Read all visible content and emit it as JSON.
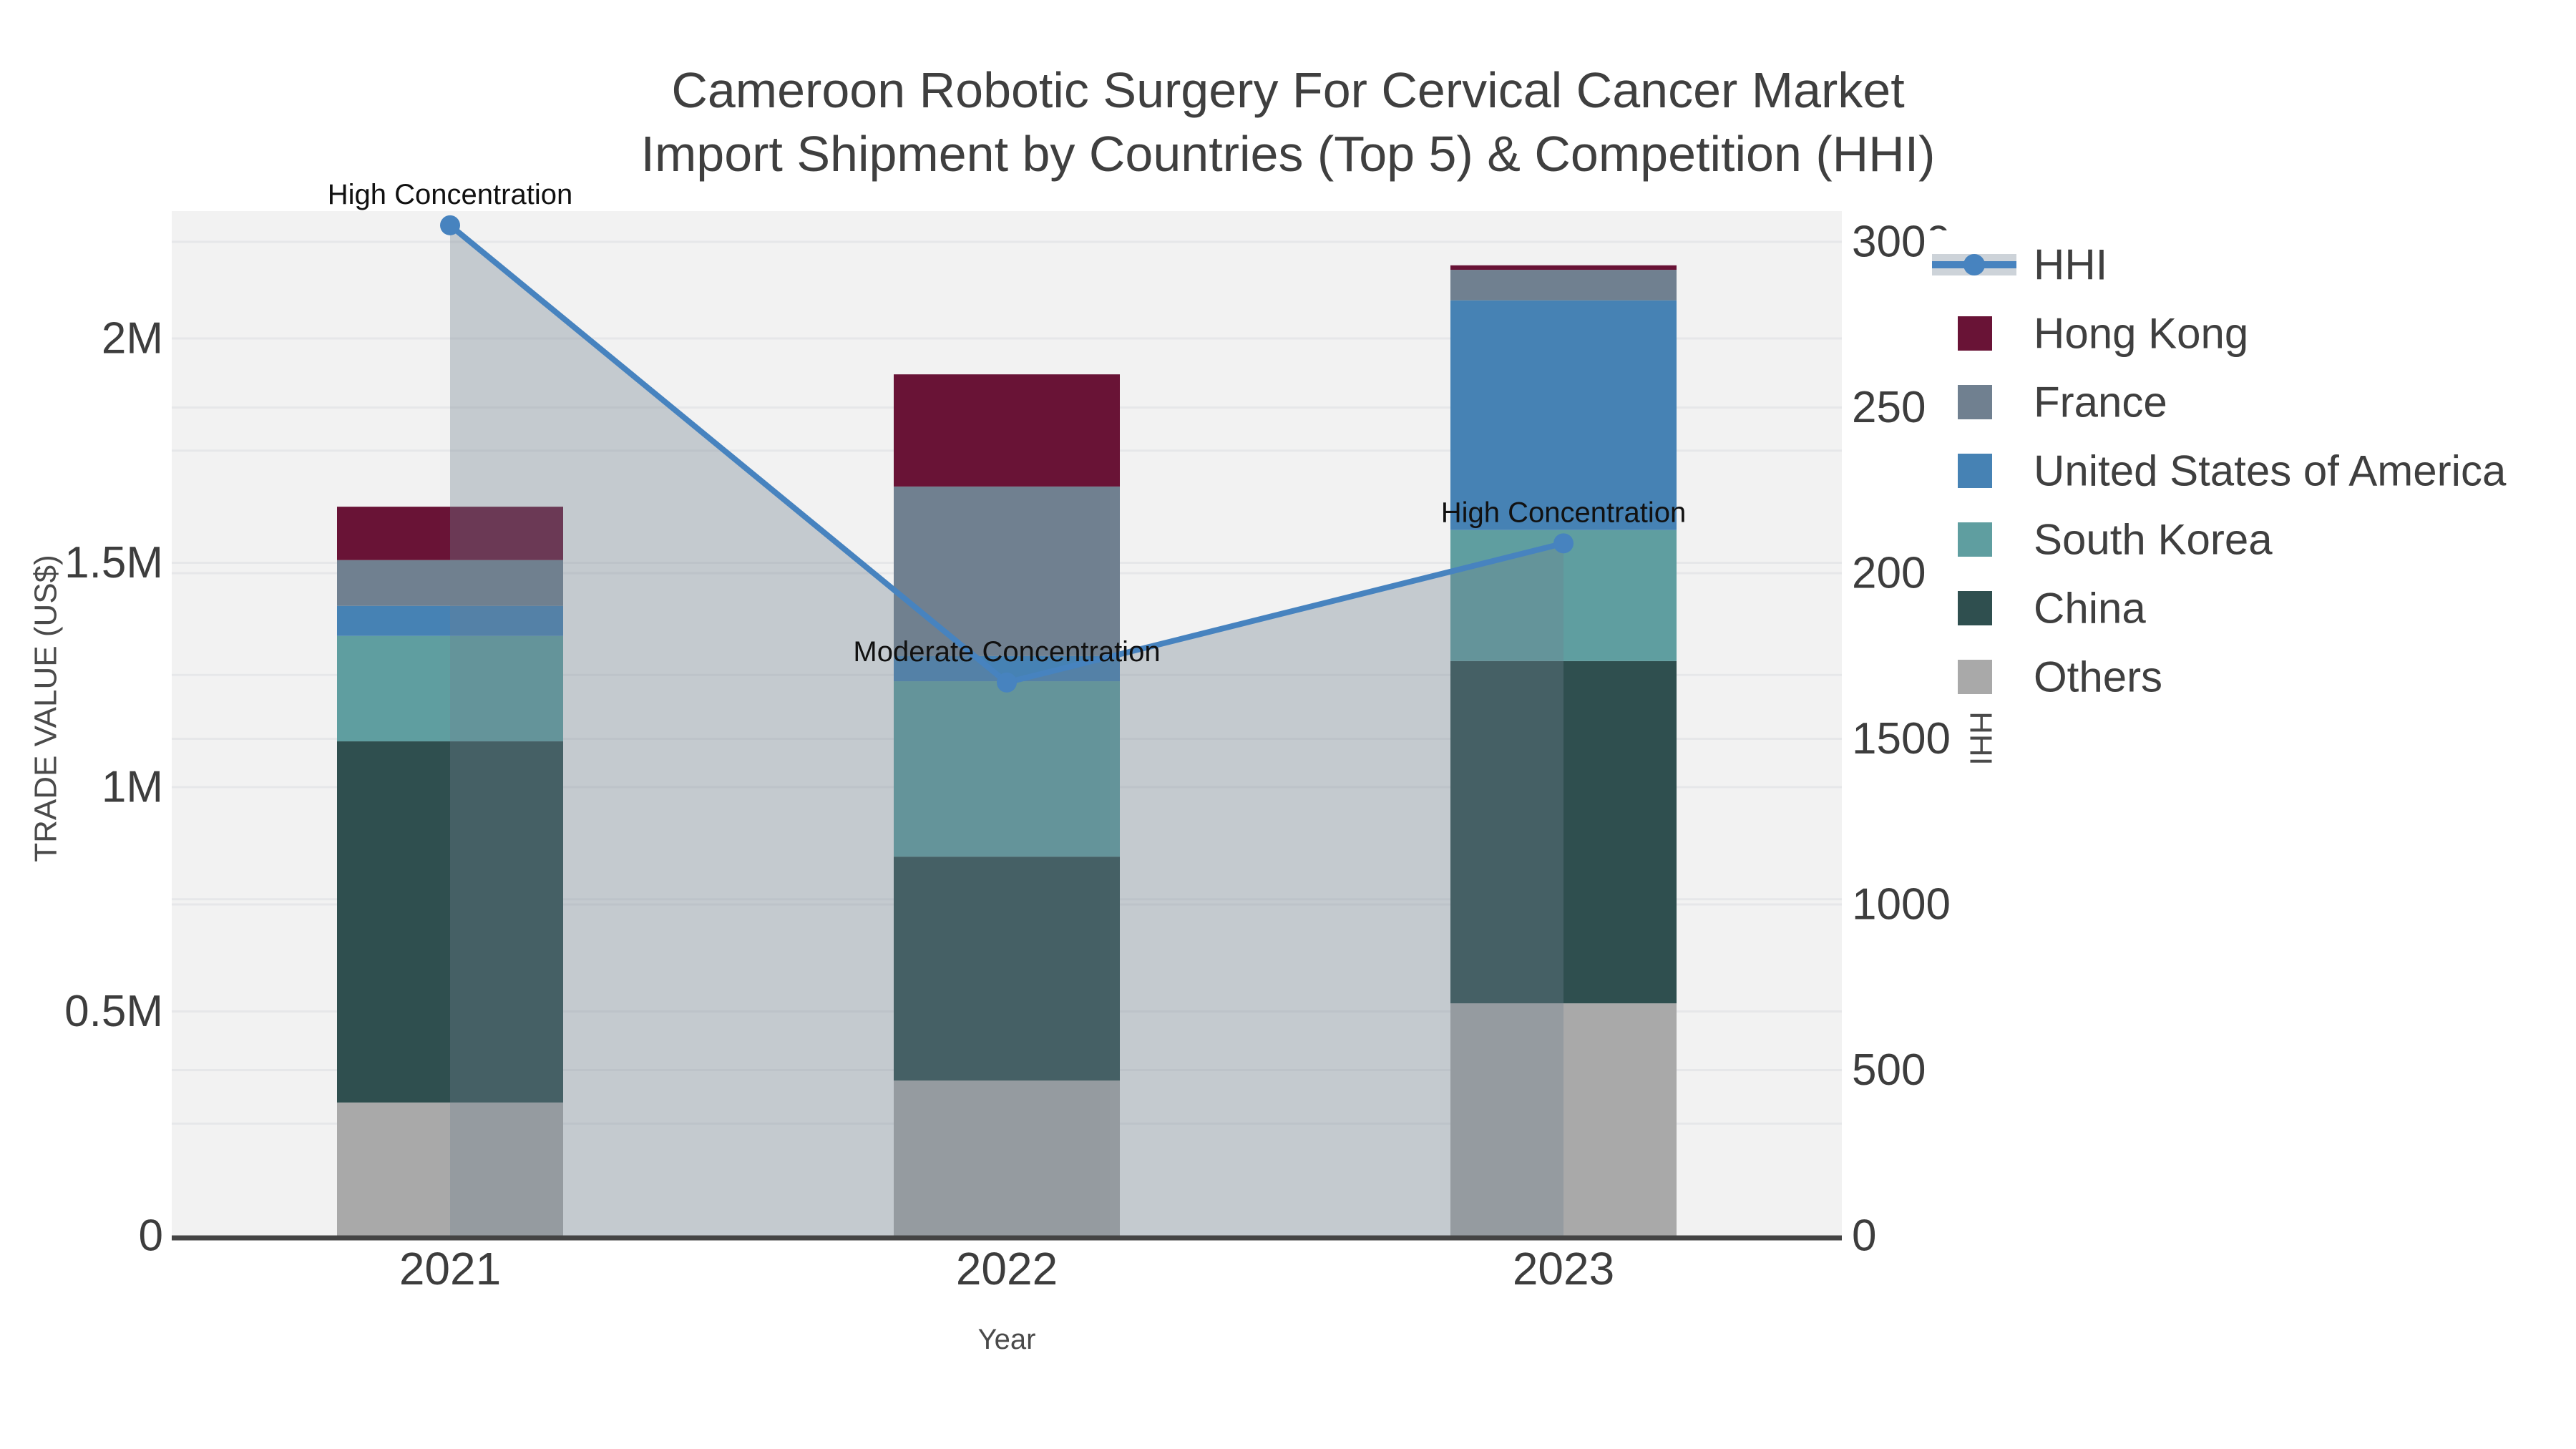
{
  "title": {
    "line1": "Cameroon Robotic Surgery For Cervical Cancer Market",
    "line2": "Import Shipment by Countries (Top 5) & Competition (HHI)"
  },
  "chart_data": {
    "type": "stacked-bar + line (dual y-axis)",
    "categories": [
      "2021",
      "2022",
      "2023"
    ],
    "value_unit": "US$ (left axis, M = millions)",
    "series": [
      {
        "name": "Others",
        "color": "#a9a9a9",
        "values": [
          0.297,
          0.346,
          0.518
        ]
      },
      {
        "name": "China",
        "color": "#2f4f4f",
        "values": [
          0.805,
          0.499,
          0.763
        ]
      },
      {
        "name": "South Korea",
        "color": "#5f9ea0",
        "values": [
          0.235,
          0.391,
          0.292
        ]
      },
      {
        "name": "United States of America",
        "color": "#4682b4",
        "values": [
          0.067,
          0.056,
          0.512
        ]
      },
      {
        "name": "France",
        "color": "#708090",
        "values": [
          0.102,
          0.378,
          0.068
        ]
      },
      {
        "name": "Hong Kong",
        "color": "#691336",
        "values": [
          0.119,
          0.25,
          0.01
        ]
      }
    ],
    "bar_totals": [
      1.625,
      1.92,
      2.163
    ],
    "line": {
      "name": "HHI",
      "axis": "right",
      "values": [
        3050,
        1670,
        2090
      ],
      "annotations": [
        "High Concentration",
        "Moderate Concentration",
        "High Concentration"
      ],
      "color": "#4783bf",
      "area_color": "rgba(112,128,144,0.35)",
      "legend_band_color": "#cdd3d9"
    },
    "xlabel": "Year",
    "ylabel": "TRADE VALUE (US$)",
    "y2label": "HHI",
    "ytick_labels": [
      "0",
      "0.5M",
      "1M",
      "1.5M",
      "2M"
    ],
    "ytick_values": [
      0,
      0.5,
      1,
      1.5,
      2
    ],
    "y2tick_labels": [
      "0",
      "500",
      "1000",
      "1500",
      "2000",
      "2500",
      "3000"
    ],
    "y2tick_values": [
      0,
      500,
      1000,
      1500,
      2000,
      2500,
      3000
    ],
    "ylim": [
      0,
      2.284
    ],
    "y2lim": [
      0,
      3093
    ],
    "grid": true,
    "plot_bg": "#f2f2f2",
    "grid_color": "#e6e7e9",
    "axis_line_color": "#444444",
    "tick_color": "#3d3d3d",
    "title_color": "#3f3f3f",
    "annotation_color": "#111111",
    "legend_position": "right"
  },
  "legend": {
    "items": [
      {
        "label": "HHI",
        "symbol": "line-marker",
        "color": "#4783bf"
      },
      {
        "label": "Hong Kong",
        "symbol": "square",
        "color": "#691336"
      },
      {
        "label": "France",
        "symbol": "square",
        "color": "#708090"
      },
      {
        "label": "United States of America",
        "symbol": "square",
        "color": "#4682b4"
      },
      {
        "label": "South Korea",
        "symbol": "square",
        "color": "#5f9ea0"
      },
      {
        "label": "China",
        "symbol": "square",
        "color": "#2f4f4f"
      },
      {
        "label": "Others",
        "symbol": "square",
        "color": "#a9a9a9"
      }
    ]
  }
}
